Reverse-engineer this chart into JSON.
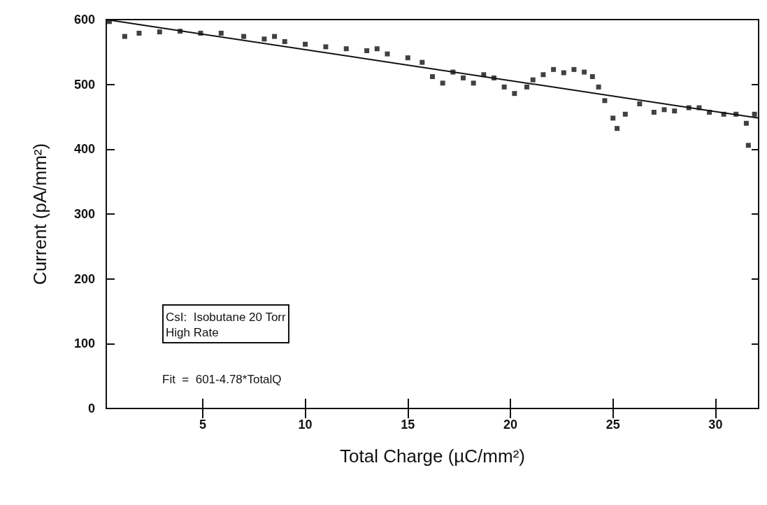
{
  "chart_data": {
    "type": "scatter",
    "xlabel": "Total Charge (µC/mm²)",
    "ylabel": "Current (pA/mm²)",
    "xlim": [
      0.3,
      32.1
    ],
    "ylim": [
      0,
      600
    ],
    "xticks": [
      5,
      10,
      15,
      20,
      25,
      30
    ],
    "yticks": [
      0,
      100,
      200,
      300,
      400,
      500,
      600
    ],
    "grid": false,
    "marker": "square",
    "annotations": [
      "CsI:  Isobutane 20 Torr\nHigh Rate",
      "Fit  =  601-4.78*TotalQ"
    ],
    "series": [
      {
        "color": "#111111",
        "x": [
          0.45,
          1.2,
          1.9,
          2.9,
          3.9,
          4.9,
          5.9,
          7.0,
          8.0,
          8.5,
          9.0,
          10.0,
          11.0,
          12.0,
          13.0,
          13.5,
          14.0,
          15.0,
          15.7,
          16.2,
          16.7,
          17.2,
          17.7,
          18.2,
          18.7,
          19.2,
          19.7,
          20.2,
          20.8,
          21.1,
          21.6,
          22.1,
          22.6,
          23.1,
          23.6,
          24.0,
          24.3,
          24.6,
          25.0,
          25.2,
          25.6,
          26.3,
          27.0,
          27.5,
          28.0,
          28.7,
          29.2,
          29.7,
          30.4,
          31.0,
          31.5,
          31.6,
          31.9
        ],
        "values": [
          597,
          574,
          579,
          581,
          582,
          579,
          579,
          574,
          570,
          574,
          566,
          562,
          558,
          555,
          552,
          555,
          547,
          541,
          534,
          512,
          502,
          519,
          510,
          502,
          515,
          510,
          496,
          486,
          496,
          507,
          515,
          523,
          518,
          523,
          519,
          512,
          496,
          475,
          448,
          432,
          454,
          470,
          457,
          461,
          459,
          464,
          464,
          457,
          454,
          454,
          440,
          406,
          454
        ]
      },
      {
        "type": "line",
        "color": "#111111",
        "marker": "none",
        "x": [
          0.3,
          32.1
        ],
        "values": [
          600,
          448
        ]
      }
    ]
  }
}
